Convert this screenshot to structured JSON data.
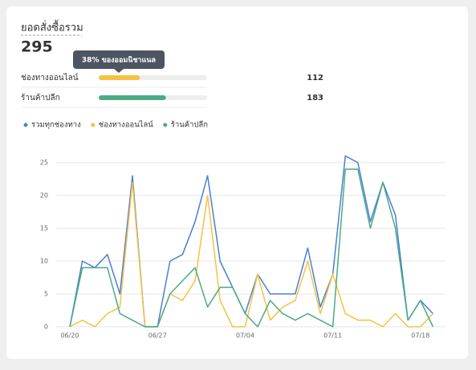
{
  "header": {
    "title": "ยอดสั่งซื้อรวม",
    "total": 295,
    "tooltip": "38% ของออมนิชาแนล"
  },
  "channels": [
    {
      "name": "ช่องทางออนไลน์",
      "value": 112,
      "color": "#f5c342"
    },
    {
      "name": "ร้านค้าปลีก",
      "value": 183,
      "color": "#4caa86"
    }
  ],
  "chart_data": {
    "type": "line",
    "categories": [
      "06/20",
      null,
      null,
      null,
      null,
      null,
      null,
      "06/27",
      null,
      null,
      null,
      null,
      null,
      null,
      "07/04",
      null,
      null,
      null,
      null,
      null,
      null,
      "07/11",
      null,
      null,
      null,
      null,
      null,
      null,
      "07/18",
      null
    ],
    "series": [
      {
        "name": "รวมทุกช่องทาง",
        "color": "#4a7fd4",
        "values": [
          0,
          10,
          9,
          11,
          5,
          23,
          0,
          0,
          10,
          11,
          16,
          23,
          10,
          6,
          2,
          8,
          5,
          5,
          5,
          12,
          3,
          8,
          26,
          25,
          16,
          22,
          17,
          1,
          4,
          2
        ]
      },
      {
        "name": "ช่องทางออนไลน์",
        "color": "#f5c342",
        "values": [
          0,
          1,
          0,
          2,
          3,
          22,
          0,
          0,
          5,
          4,
          7,
          20,
          4,
          0,
          0,
          8,
          1,
          3,
          4,
          10,
          2,
          8,
          2,
          1,
          1,
          0,
          2,
          0,
          0,
          2
        ]
      },
      {
        "name": "ร้านค้าปลีก",
        "color": "#4caa86",
        "values": [
          0,
          9,
          9,
          9,
          2,
          1,
          0,
          0,
          5,
          7,
          9,
          3,
          6,
          6,
          2,
          0,
          4,
          2,
          1,
          2,
          1,
          0,
          24,
          24,
          15,
          22,
          15,
          1,
          4,
          0
        ]
      }
    ],
    "ylim": [
      0,
      26
    ],
    "yticks": [
      0,
      5,
      10,
      15,
      20,
      25
    ],
    "grid": true
  }
}
